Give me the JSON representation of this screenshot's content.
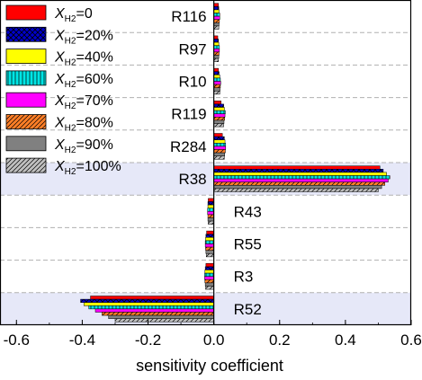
{
  "chart_data": {
    "type": "bar",
    "orientation": "horizontal",
    "xlabel": "sensitivity coefficient",
    "ylabel": "",
    "xlim": [
      -0.65,
      0.6
    ],
    "xticks": [
      "-0.6",
      "-0.4",
      "-0.2",
      "0.0",
      "0.2",
      "0.4",
      "0.6"
    ],
    "xtick_values": [
      -0.6,
      -0.4,
      -0.2,
      0.0,
      0.2,
      0.4,
      0.6
    ],
    "grid": "horizontal dashed separators between reactions",
    "highlighted_categories": [
      "R38",
      "R52"
    ],
    "highlight_color": "#e6e8f8",
    "legend_position": "top-left",
    "categories": [
      "R116",
      "R97",
      "R10",
      "R119",
      "R284",
      "R38",
      "R43",
      "R55",
      "R3",
      "R52"
    ],
    "series": [
      {
        "name_main": "X",
        "name_sub": "H2",
        "name_tail": "=0",
        "color": "#ff0000",
        "pattern": "solid",
        "values": [
          0.014,
          0.012,
          0.014,
          0.022,
          0.026,
          0.505,
          -0.017,
          -0.022,
          -0.024,
          -0.375
        ]
      },
      {
        "name_main": "X",
        "name_sub": "H2",
        "name_tail": "=20%",
        "color": "#0000cc",
        "pattern": "crosshatch",
        "values": [
          0.015,
          0.014,
          0.016,
          0.03,
          0.032,
          0.515,
          -0.018,
          -0.024,
          -0.026,
          -0.405
        ]
      },
      {
        "name_main": "X",
        "name_sub": "H2",
        "name_tail": "=40%",
        "color": "#ffff00",
        "pattern": "solid",
        "values": [
          0.016,
          0.015,
          0.018,
          0.032,
          0.034,
          0.525,
          -0.018,
          -0.025,
          -0.027,
          -0.395
        ]
      },
      {
        "name_main": "X",
        "name_sub": "H2",
        "name_tail": "=60%",
        "color": "#00e5e5",
        "pattern": "vertical",
        "values": [
          0.018,
          0.017,
          0.02,
          0.035,
          0.036,
          0.535,
          -0.019,
          -0.026,
          -0.028,
          -0.38
        ]
      },
      {
        "name_main": "X",
        "name_sub": "H2",
        "name_tail": "=70%",
        "color": "#ff00ff",
        "pattern": "solid",
        "values": [
          0.018,
          0.017,
          0.021,
          0.034,
          0.036,
          0.53,
          -0.019,
          -0.026,
          -0.028,
          -0.36
        ]
      },
      {
        "name_main": "X",
        "name_sub": "H2",
        "name_tail": "=80%",
        "color": "#ff7f27",
        "pattern": "diagonal",
        "values": [
          0.017,
          0.016,
          0.02,
          0.033,
          0.035,
          0.52,
          -0.018,
          -0.025,
          -0.027,
          -0.34
        ]
      },
      {
        "name_main": "X",
        "name_sub": "H2",
        "name_tail": "=90%",
        "color": "#808080",
        "pattern": "solid",
        "values": [
          0.016,
          0.015,
          0.019,
          0.031,
          0.033,
          0.51,
          -0.018,
          -0.024,
          -0.026,
          -0.32
        ]
      },
      {
        "name_main": "X",
        "name_sub": "H2",
        "name_tail": "=100%",
        "color": "#c0c0c0",
        "pattern": "diagonal",
        "values": [
          0.015,
          0.014,
          0.018,
          0.03,
          0.032,
          0.5,
          -0.017,
          -0.023,
          -0.025,
          -0.3
        ]
      }
    ]
  }
}
